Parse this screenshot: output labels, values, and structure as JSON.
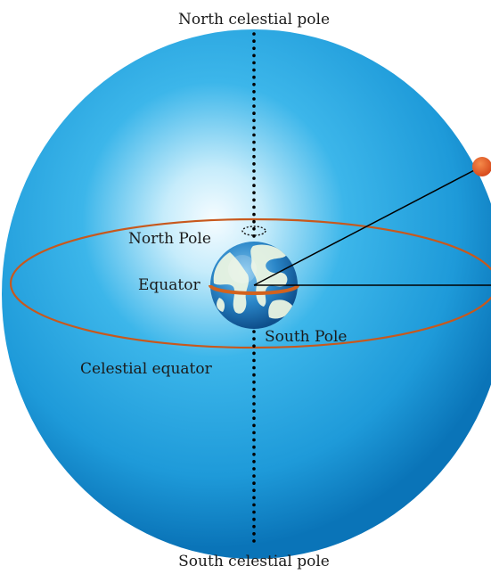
{
  "labels": {
    "north_celestial_pole": "North celestial pole",
    "south_celestial_pole": "South celestial pole",
    "north_pole": "North Pole",
    "equator": "Equator",
    "south_pole": "South Pole",
    "celestial_equator": "Celestial equator"
  },
  "colors": {
    "sphere_light": "#f4fbff",
    "sphere_mid": "#3cb6ea",
    "sphere_dark": "#0a74b8",
    "equator_ring": "#c8581c",
    "star_marker": "#e0541c",
    "axis": "#000000",
    "earth_ocean": "#2a86c8",
    "earth_land": "#e8f3df"
  }
}
